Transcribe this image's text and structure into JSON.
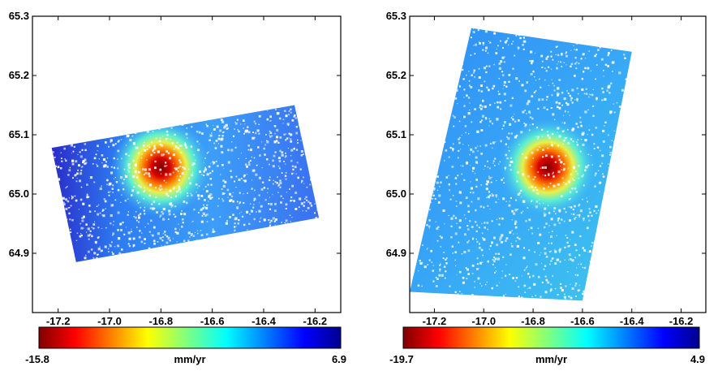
{
  "chart_data": [
    {
      "type": "heatmap",
      "title": "",
      "xlabel": "",
      "ylabel": "",
      "xlim": [
        -17.3,
        -16.1
      ],
      "ylim": [
        64.8,
        65.3
      ],
      "x_ticks": [
        -17.2,
        -17.0,
        -16.8,
        -16.6,
        -16.4,
        -16.2
      ],
      "x_tick_labels": [
        "-17.2",
        "-17.0",
        "-16.8",
        "-16.6",
        "-16.4",
        "-16.2"
      ],
      "y_ticks": [
        65.3,
        65.2,
        65.1,
        65.0,
        64.9
      ],
      "y_tick_labels": [
        "65.3",
        "65.2",
        "65.1",
        "65.0",
        "64.9"
      ],
      "footprint": [
        [
          -17.225,
          65.078
        ],
        [
          -16.28,
          65.15
        ],
        [
          -16.185,
          64.96
        ],
        [
          -17.13,
          64.885
        ]
      ],
      "anomaly_center": [
        -16.8,
        65.045
      ],
      "colorbar": {
        "min": -15.8,
        "max": 6.9,
        "min_label": "-15.8",
        "max_label": "6.9",
        "unit": "mm/yr"
      }
    },
    {
      "type": "heatmap",
      "title": "",
      "xlabel": "",
      "ylabel": "",
      "xlim": [
        -17.3,
        -16.1
      ],
      "ylim": [
        64.8,
        65.3
      ],
      "x_ticks": [
        -17.2,
        -17.0,
        -16.8,
        -16.6,
        -16.4,
        -16.2
      ],
      "x_tick_labels": [
        "-17.2",
        "-17.0",
        "-16.8",
        "-16.6",
        "-16.4",
        "-16.2"
      ],
      "y_ticks": [
        65.3,
        65.2,
        65.1,
        65.0,
        64.9
      ],
      "y_tick_labels": [
        "65.3",
        "65.2",
        "65.1",
        "65.0",
        "64.9"
      ],
      "footprint": [
        [
          -17.05,
          65.28
        ],
        [
          -16.4,
          65.24
        ],
        [
          -16.6,
          64.82
        ],
        [
          -17.3,
          64.835
        ]
      ],
      "anomaly_center": [
        -16.74,
        65.045
      ],
      "colorbar": {
        "min": -19.7,
        "max": 4.9,
        "min_label": "-19.7",
        "max_label": "4.9",
        "unit": "mm/yr"
      }
    }
  ]
}
